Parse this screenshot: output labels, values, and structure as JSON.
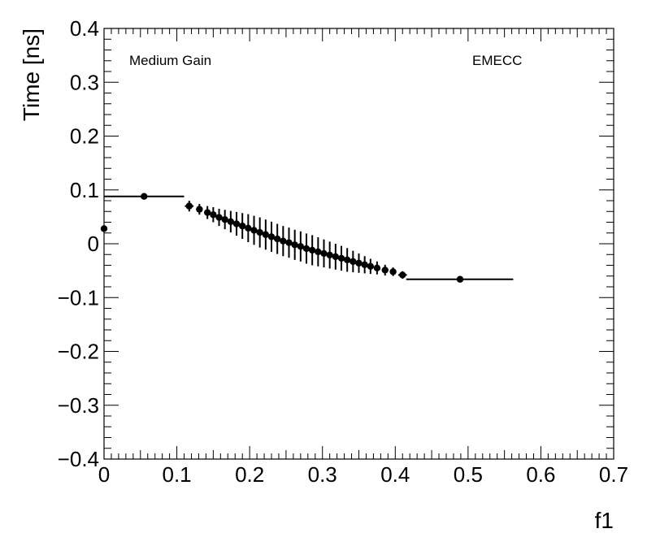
{
  "chart_data": {
    "type": "scatter",
    "xlabel": "f1",
    "ylabel": "Time [ns]",
    "xlim": [
      0,
      0.7
    ],
    "ylim": [
      -0.4,
      0.4
    ],
    "x_ticks": [
      0,
      0.1,
      0.2,
      0.3,
      0.4,
      0.5,
      0.6,
      0.7
    ],
    "x_tick_labels": [
      "0",
      "0.1",
      "0.2",
      "0.3",
      "0.4",
      "0.5",
      "0.6",
      "0.7"
    ],
    "y_ticks": [
      -0.4,
      -0.3,
      -0.2,
      -0.1,
      0,
      0.1,
      0.2,
      0.3,
      0.4
    ],
    "y_tick_labels": [
      "−0.4",
      "−0.3",
      "−0.2",
      "−0.1",
      "0",
      "0.1",
      "0.2",
      "0.3",
      "0.4"
    ],
    "annotations": {
      "left": "Medium Gain",
      "right": "EMECC"
    },
    "grid": false,
    "marker_color": "#000000",
    "points": [
      {
        "x": 0.0,
        "y": 0.028,
        "xerr": [
          0.0,
          0.0
        ],
        "yerr": 0.004
      },
      {
        "x": 0.055,
        "y": 0.088,
        "xerr": [
          0.055,
          0.055
        ],
        "yerr": 0.004
      },
      {
        "x": 0.117,
        "y": 0.07,
        "xerr": [
          0.006,
          0.006
        ],
        "yerr": 0.01
      },
      {
        "x": 0.131,
        "y": 0.064,
        "xerr": [
          0.004,
          0.004
        ],
        "yerr": 0.01
      },
      {
        "x": 0.142,
        "y": 0.058,
        "xerr": [
          0.003,
          0.003
        ],
        "yerr": 0.012
      },
      {
        "x": 0.15,
        "y": 0.054,
        "xerr": [
          0.003,
          0.003
        ],
        "yerr": 0.014
      },
      {
        "x": 0.158,
        "y": 0.049,
        "xerr": [
          0.003,
          0.003
        ],
        "yerr": 0.016
      },
      {
        "x": 0.166,
        "y": 0.045,
        "xerr": [
          0.003,
          0.003
        ],
        "yerr": 0.018
      },
      {
        "x": 0.174,
        "y": 0.041,
        "xerr": [
          0.003,
          0.003
        ],
        "yerr": 0.02
      },
      {
        "x": 0.182,
        "y": 0.037,
        "xerr": [
          0.003,
          0.003
        ],
        "yerr": 0.022
      },
      {
        "x": 0.19,
        "y": 0.033,
        "xerr": [
          0.003,
          0.003
        ],
        "yerr": 0.024
      },
      {
        "x": 0.198,
        "y": 0.029,
        "xerr": [
          0.003,
          0.003
        ],
        "yerr": 0.026
      },
      {
        "x": 0.206,
        "y": 0.025,
        "xerr": [
          0.003,
          0.003
        ],
        "yerr": 0.027
      },
      {
        "x": 0.214,
        "y": 0.021,
        "xerr": [
          0.003,
          0.003
        ],
        "yerr": 0.028
      },
      {
        "x": 0.222,
        "y": 0.017,
        "xerr": [
          0.003,
          0.003
        ],
        "yerr": 0.028
      },
      {
        "x": 0.23,
        "y": 0.013,
        "xerr": [
          0.003,
          0.003
        ],
        "yerr": 0.028
      },
      {
        "x": 0.238,
        "y": 0.009,
        "xerr": [
          0.003,
          0.003
        ],
        "yerr": 0.028
      },
      {
        "x": 0.246,
        "y": 0.005,
        "xerr": [
          0.003,
          0.003
        ],
        "yerr": 0.028
      },
      {
        "x": 0.254,
        "y": 0.002,
        "xerr": [
          0.003,
          0.003
        ],
        "yerr": 0.028
      },
      {
        "x": 0.262,
        "y": -0.002,
        "xerr": [
          0.003,
          0.003
        ],
        "yerr": 0.028
      },
      {
        "x": 0.27,
        "y": -0.005,
        "xerr": [
          0.003,
          0.003
        ],
        "yerr": 0.028
      },
      {
        "x": 0.278,
        "y": -0.009,
        "xerr": [
          0.003,
          0.003
        ],
        "yerr": 0.028
      },
      {
        "x": 0.286,
        "y": -0.012,
        "xerr": [
          0.003,
          0.003
        ],
        "yerr": 0.028
      },
      {
        "x": 0.294,
        "y": -0.015,
        "xerr": [
          0.003,
          0.003
        ],
        "yerr": 0.027
      },
      {
        "x": 0.302,
        "y": -0.018,
        "xerr": [
          0.003,
          0.003
        ],
        "yerr": 0.026
      },
      {
        "x": 0.31,
        "y": -0.021,
        "xerr": [
          0.003,
          0.003
        ],
        "yerr": 0.025
      },
      {
        "x": 0.318,
        "y": -0.024,
        "xerr": [
          0.003,
          0.003
        ],
        "yerr": 0.024
      },
      {
        "x": 0.326,
        "y": -0.027,
        "xerr": [
          0.003,
          0.003
        ],
        "yerr": 0.023
      },
      {
        "x": 0.334,
        "y": -0.03,
        "xerr": [
          0.003,
          0.003
        ],
        "yerr": 0.022
      },
      {
        "x": 0.342,
        "y": -0.033,
        "xerr": [
          0.003,
          0.003
        ],
        "yerr": 0.02
      },
      {
        "x": 0.35,
        "y": -0.036,
        "xerr": [
          0.003,
          0.003
        ],
        "yerr": 0.018
      },
      {
        "x": 0.358,
        "y": -0.039,
        "xerr": [
          0.003,
          0.003
        ],
        "yerr": 0.016
      },
      {
        "x": 0.366,
        "y": -0.042,
        "xerr": [
          0.003,
          0.003
        ],
        "yerr": 0.014
      },
      {
        "x": 0.375,
        "y": -0.045,
        "xerr": [
          0.003,
          0.003
        ],
        "yerr": 0.012
      },
      {
        "x": 0.386,
        "y": -0.049,
        "xerr": [
          0.004,
          0.004
        ],
        "yerr": 0.01
      },
      {
        "x": 0.397,
        "y": -0.052,
        "xerr": [
          0.004,
          0.004
        ],
        "yerr": 0.008
      },
      {
        "x": 0.41,
        "y": -0.058,
        "xerr": [
          0.006,
          0.006
        ],
        "yerr": 0.007
      },
      {
        "x": 0.489,
        "y": -0.066,
        "xerr": [
          0.074,
          0.073
        ],
        "yerr": 0.004
      }
    ]
  }
}
